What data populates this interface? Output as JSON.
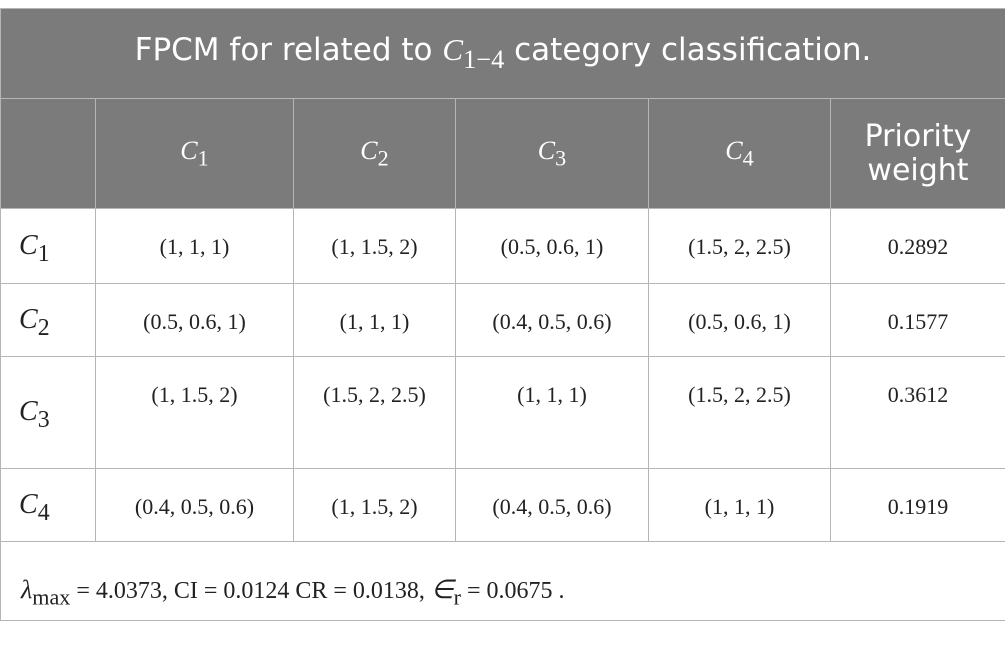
{
  "title": {
    "before": "FPCM for related to",
    "symbol": {
      "base": "C",
      "sub": "1−4"
    },
    "after": "category classification."
  },
  "table": {
    "header": [
      {
        "base": "C",
        "sub": "1"
      },
      {
        "base": "C",
        "sub": "2"
      },
      {
        "base": "C",
        "sub": "3"
      },
      {
        "base": "C",
        "sub": "4"
      },
      "Priority weight"
    ],
    "rows": [
      {
        "label": {
          "base": "C",
          "sub": "1"
        },
        "cells": [
          "(1, 1, 1)",
          "(1, 1.5, 2)",
          "(0.5, 0.6, 1)",
          "(1.5, 2, 2.5)"
        ],
        "weight": "0.2892"
      },
      {
        "label": {
          "base": "C",
          "sub": "2"
        },
        "cells": [
          "(0.5, 0.6, 1)",
          "(1, 1, 1)",
          "(0.4, 0.5, 0.6)",
          "(0.5, 0.6, 1)"
        ],
        "weight": "0.1577"
      },
      {
        "label": {
          "base": "C",
          "sub": "3"
        },
        "cells": [
          "(1, 1.5, 2)",
          "(1.5, 2, 2.5)",
          "(1, 1, 1)",
          "(1.5, 2, 2.5)"
        ],
        "weight": "0.3612"
      },
      {
        "label": {
          "base": "C",
          "sub": "4"
        },
        "cells": [
          "(0.4, 0.5, 0.6)",
          "(1, 1.5, 2)",
          "(0.4, 0.5, 0.6)",
          "(1, 1, 1)"
        ],
        "weight": "0.1919"
      }
    ]
  },
  "footer": [
    {
      "base": "λ",
      "sub": "max"
    },
    "= 4.0373, CI = 0.0124 CR = 0.0138,",
    {
      "base": "∈",
      "sub": "r"
    },
    "= 0.0675 ."
  ]
}
